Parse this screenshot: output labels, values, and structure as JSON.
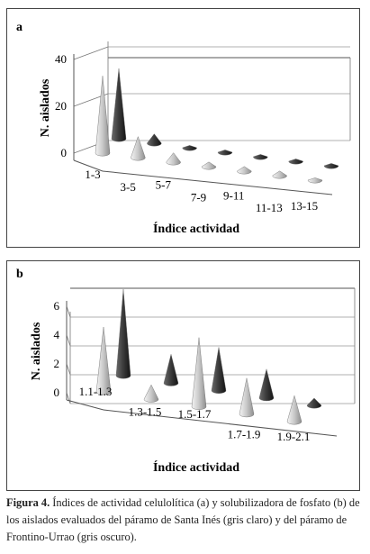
{
  "chart_data": [
    {
      "type": "3d-cone-bar",
      "panel_label": "a",
      "ylabel": "N. aislados",
      "xlabel": "Índice actividad",
      "yticks": [
        0,
        20,
        40
      ],
      "ylim": [
        0,
        40
      ],
      "categories": [
        "1-3",
        "3-5",
        "5-7",
        "7-9",
        "9-11",
        "11-13",
        "13-15"
      ],
      "series": [
        {
          "values": [
            33,
            9,
            4,
            2,
            2,
            2,
            1
          ]
        },
        {
          "values": [
            30,
            4,
            1,
            1,
            1,
            1,
            1
          ]
        }
      ]
    },
    {
      "type": "3d-cone-bar",
      "panel_label": "b",
      "ylabel": "N. aislados",
      "xlabel": "Índice actividad",
      "yticks": [
        0,
        2,
        4,
        6
      ],
      "ylim": [
        0,
        6
      ],
      "categories": [
        "1.1-1.3",
        "1.3-1.5",
        "1.5-1.7",
        "1.7-1.9",
        "1.9-2.1"
      ],
      "series": [
        {
          "values": [
            4.5,
            1,
            4.8,
            2.5,
            1.8
          ]
        },
        {
          "values": [
            6,
            2,
            3,
            2,
            0.5
          ]
        }
      ]
    }
  ],
  "caption": {
    "label": "Figura 4.",
    "text": " Índices de actividad celulolítica (a) y solubilizadora de fosfato (b) de los aislados evaluados del páramo de Santa Inés (gris claro) y del páramo de Frontino-Urrao (gris oscuro)."
  },
  "colors": {
    "light_series": "#c8c8c8",
    "dark_series": "#3a3a3a",
    "frame": "#444444"
  }
}
